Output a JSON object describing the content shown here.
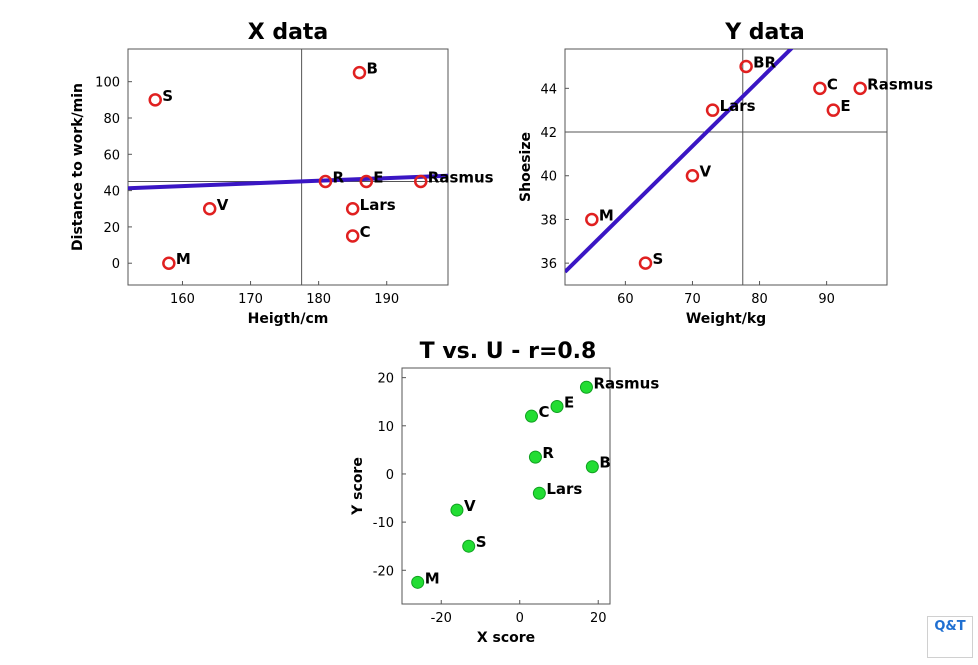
{
  "chart_data": [
    {
      "type": "scatter",
      "title": "X data",
      "xlabel": "Heigth/cm",
      "ylabel": "Distance to work/min",
      "xlim": [
        152,
        199
      ],
      "ylim": [
        -12,
        118
      ],
      "xticks": [
        160,
        170,
        180,
        190
      ],
      "yticks": [
        0,
        20,
        40,
        60,
        80,
        100
      ],
      "marker_color": "#e02020",
      "line_color": "#3a16c4",
      "points": [
        {
          "label": "S",
          "x": 156,
          "y": 90
        },
        {
          "label": "B",
          "x": 186,
          "y": 105
        },
        {
          "label": "R",
          "x": 181,
          "y": 45
        },
        {
          "label": "E",
          "x": 187,
          "y": 45
        },
        {
          "label": "Rasmus",
          "x": 195,
          "y": 45
        },
        {
          "label": "V",
          "x": 164,
          "y": 30
        },
        {
          "label": "Lars",
          "x": 185,
          "y": 30
        },
        {
          "label": "C",
          "x": 185,
          "y": 15
        },
        {
          "label": "M",
          "x": 158,
          "y": 0
        }
      ],
      "fit_line": [
        [
          150,
          41
        ],
        [
          201,
          48.5
        ]
      ],
      "ref_lines": {
        "x": 177.5,
        "y": 45
      }
    },
    {
      "type": "scatter",
      "title": "Y data",
      "xlabel": "Weight/kg",
      "ylabel": "Shoesize",
      "xlim": [
        51,
        99
      ],
      "ylim": [
        35,
        45.8
      ],
      "xticks": [
        60,
        70,
        80,
        90
      ],
      "yticks": [
        36,
        38,
        40,
        42,
        44
      ],
      "marker_color": "#e02020",
      "line_color": "#3a16c4",
      "points": [
        {
          "label": "BR",
          "x": 78,
          "y": 45
        },
        {
          "label": "C",
          "x": 89,
          "y": 44
        },
        {
          "label": "Rasmus",
          "x": 95,
          "y": 44
        },
        {
          "label": "Lars",
          "x": 73,
          "y": 43
        },
        {
          "label": "E",
          "x": 91,
          "y": 43
        },
        {
          "label": "V",
          "x": 70,
          "y": 40
        },
        {
          "label": "M",
          "x": 55,
          "y": 38
        },
        {
          "label": "S",
          "x": 63,
          "y": 36
        }
      ],
      "fit_line": [
        [
          51,
          35.6
        ],
        [
          85,
          45.9
        ]
      ],
      "ref_lines": {
        "x": 77.5,
        "y": 42
      }
    },
    {
      "type": "scatter",
      "title": "T vs. U - r=0.8",
      "xlabel": "X score",
      "ylabel": "Y score",
      "xlim": [
        -30,
        23
      ],
      "ylim": [
        -27,
        22
      ],
      "xticks": [
        -20,
        0,
        20
      ],
      "yticks": [
        -20,
        -10,
        0,
        10,
        20
      ],
      "marker_color": "#22dd33",
      "points": [
        {
          "label": "Rasmus",
          "x": 17,
          "y": 18
        },
        {
          "label": "E",
          "x": 9.5,
          "y": 14
        },
        {
          "label": "C",
          "x": 3,
          "y": 12
        },
        {
          "label": "R",
          "x": 4,
          "y": 3.5
        },
        {
          "label": "B",
          "x": 18.5,
          "y": 1.5
        },
        {
          "label": "Lars",
          "x": 5,
          "y": -4
        },
        {
          "label": "V",
          "x": -16,
          "y": -7.5
        },
        {
          "label": "S",
          "x": -13,
          "y": -15
        },
        {
          "label": "M",
          "x": -26,
          "y": -22.5
        }
      ]
    }
  ],
  "logo": {
    "text_line1": "Q&T"
  }
}
